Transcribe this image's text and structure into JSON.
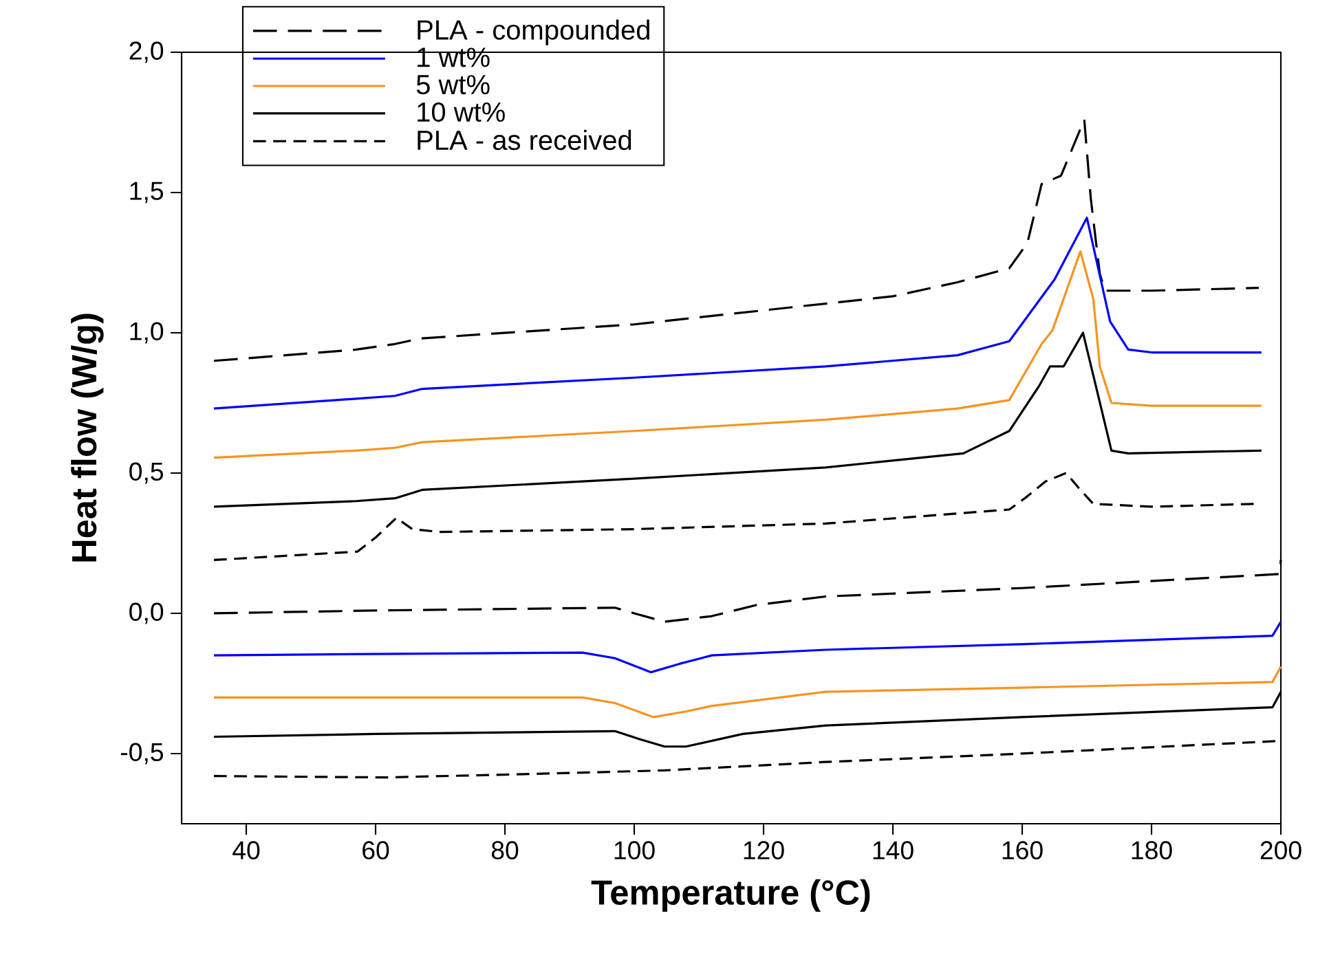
{
  "chart_data": {
    "type": "line",
    "xlabel": "Temperature (°C)",
    "ylabel": "Heat flow (W/g)",
    "xlim": [
      30,
      200
    ],
    "ylim": [
      -0.75,
      2.0
    ],
    "xticks": [
      40,
      60,
      80,
      100,
      120,
      140,
      160,
      180,
      200
    ],
    "yticks": [
      {
        "value": -0.5,
        "label": "-0,5"
      },
      {
        "value": 0,
        "label": "0,0"
      },
      {
        "value": 0.5,
        "label": "0,5"
      },
      {
        "value": 1.0,
        "label": "1,0"
      },
      {
        "value": 1.5,
        "label": "1,5"
      },
      {
        "value": 2.0,
        "label": "2,0"
      }
    ],
    "legend": "top left",
    "marker": "none",
    "grid": false,
    "series": [
      {
        "name": "PLA - compounded",
        "color": "#000000",
        "line_style": "dashed",
        "x": [
          35,
          57,
          63,
          67,
          100,
          140,
          150,
          158,
          160.8,
          163,
          166,
          169.6,
          170.6,
          172,
          172.8,
          180,
          196.6
        ],
        "values": [
          0.9,
          0.94,
          0.96,
          0.98,
          1.03,
          1.13,
          1.18,
          1.23,
          1.32,
          1.53,
          1.56,
          1.76,
          1.48,
          1.21,
          1.15,
          1.15,
          1.16
        ]
      },
      {
        "name": "1 wt%",
        "color": "#0000ff",
        "line_style": "solid",
        "x": [
          35,
          57,
          63,
          67.2,
          100,
          129.6,
          150,
          158,
          165,
          170,
          173.6,
          176.4,
          180,
          197
        ],
        "values": [
          0.73,
          0.765,
          0.775,
          0.8,
          0.84,
          0.88,
          0.92,
          0.97,
          1.19,
          1.41,
          1.04,
          0.94,
          0.93,
          0.93
        ]
      },
      {
        "name": "5 wt%",
        "color": "#f7931e",
        "line_style": "solid",
        "x": [
          35,
          57,
          63,
          67.2,
          100,
          129.6,
          150,
          158,
          163,
          164.7,
          169,
          171,
          172,
          173.8,
          180,
          197
        ],
        "values": [
          0.555,
          0.58,
          0.59,
          0.61,
          0.65,
          0.69,
          0.73,
          0.76,
          0.96,
          1.01,
          1.29,
          1.12,
          0.88,
          0.75,
          0.74,
          0.74
        ]
      },
      {
        "name": "10 wt%",
        "color": "#000000",
        "line_style": "solid",
        "x": [
          35,
          57,
          63,
          67.2,
          100,
          129.6,
          150.9,
          158,
          162.6,
          164.3,
          166.4,
          169.4,
          171.5,
          173.8,
          176.4,
          197
        ],
        "values": [
          0.38,
          0.4,
          0.41,
          0.44,
          0.48,
          0.52,
          0.57,
          0.65,
          0.81,
          0.88,
          0.88,
          1.0,
          0.8,
          0.58,
          0.57,
          0.58
        ]
      },
      {
        "name": "PLA - as received",
        "color": "#000000",
        "line_style": "dashed",
        "x": [
          35,
          57.2,
          60,
          63.2,
          65.7,
          70,
          100,
          129.6,
          158,
          160.4,
          163.6,
          166.8,
          169,
          171,
          180,
          196
        ],
        "values": [
          0.19,
          0.22,
          0.27,
          0.34,
          0.3,
          0.29,
          0.3,
          0.32,
          0.37,
          0.41,
          0.47,
          0.5,
          0.44,
          0.39,
          0.38,
          0.39
        ]
      },
      {
        "color": "#000000",
        "line_style": "dashed",
        "x": [
          35,
          60,
          97,
          100,
          104.7,
          112,
          119,
          129.6,
          160,
          199.8,
          200
        ],
        "values": [
          0.0,
          0.01,
          0.02,
          0.0,
          -0.03,
          -0.01,
          0.03,
          0.06,
          0.09,
          0.14,
          0.19
        ]
      },
      {
        "color": "#0000ff",
        "line_style": "solid",
        "x": [
          35,
          60,
          92,
          97,
          102.6,
          107,
          112,
          129.6,
          160,
          198.7,
          200
        ],
        "values": [
          -0.15,
          -0.145,
          -0.14,
          -0.16,
          -0.21,
          -0.18,
          -0.15,
          -0.13,
          -0.11,
          -0.08,
          -0.03
        ]
      },
      {
        "color": "#f7931e",
        "line_style": "solid",
        "x": [
          35,
          60,
          92,
          97,
          103,
          108,
          112,
          129.6,
          160,
          198.7,
          200
        ],
        "values": [
          -0.3,
          -0.3,
          -0.3,
          -0.32,
          -0.37,
          -0.35,
          -0.33,
          -0.28,
          -0.265,
          -0.245,
          -0.19
        ]
      },
      {
        "color": "#000000",
        "line_style": "solid",
        "x": [
          35,
          60,
          97,
          101,
          104.7,
          108,
          116.8,
          129.6,
          160,
          198.7,
          200
        ],
        "values": [
          -0.44,
          -0.43,
          -0.42,
          -0.45,
          -0.475,
          -0.475,
          -0.43,
          -0.4,
          -0.37,
          -0.335,
          -0.28
        ]
      },
      {
        "color": "#000000",
        "line_style": "dashed",
        "x": [
          35,
          61.5,
          80,
          104.7,
          129.6,
          160,
          199.8
        ],
        "values": [
          -0.58,
          -0.585,
          -0.575,
          -0.56,
          -0.53,
          -0.5,
          -0.455
        ]
      }
    ]
  }
}
